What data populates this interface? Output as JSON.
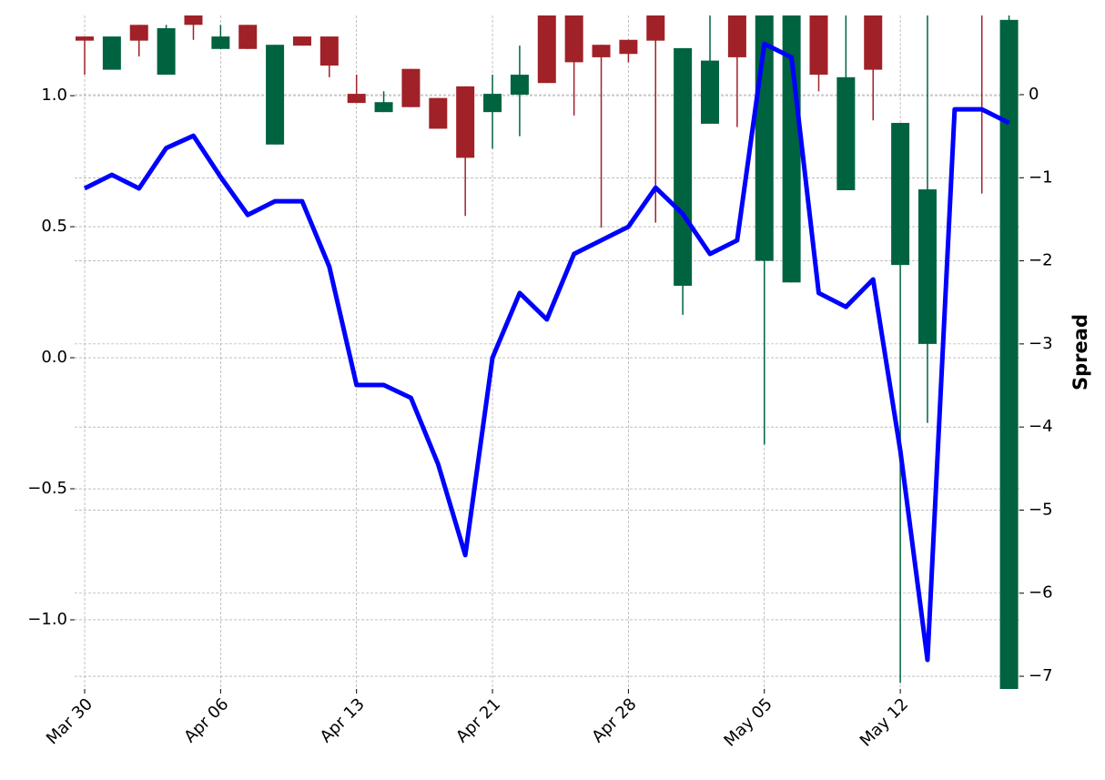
{
  "chart_data": {
    "type": "candlestick",
    "categories": [
      "Mar 30",
      null,
      null,
      null,
      null,
      "Apr 06",
      null,
      null,
      null,
      null,
      "Apr 13",
      null,
      null,
      null,
      null,
      "Apr 21",
      null,
      null,
      null,
      null,
      "Apr 28",
      null,
      null,
      null,
      null,
      "May 05",
      null,
      null,
      null,
      null,
      "May 12",
      null,
      null,
      null,
      null
    ],
    "y2label": "Spread",
    "ylim": [
      -1.264,
      1.306
    ],
    "yticks": [
      {
        "value": -1,
        "label": "−1.0"
      },
      {
        "value": -0.5,
        "label": "−0.5"
      },
      {
        "value": 0,
        "label": "0.0"
      },
      {
        "value": 0.5,
        "label": "0.5"
      },
      {
        "value": 1,
        "label": "1.0"
      }
    ],
    "y2lim": [
      -7.153,
      0.953
    ],
    "y2ticks": [
      {
        "value": -7,
        "label": "−7"
      },
      {
        "value": -6,
        "label": "−6"
      },
      {
        "value": -5,
        "label": "−5"
      },
      {
        "value": -4,
        "label": "−4"
      },
      {
        "value": -3,
        "label": "−3"
      },
      {
        "value": -2,
        "label": "−2"
      },
      {
        "value": -1,
        "label": "−1"
      },
      0
    ],
    "grid": true,
    "series": [
      {
        "type": "candlestick",
        "axis": "y2",
        "up_color": "#006340",
        "down_color": "#a02128",
        "open": [
          0.7,
          0.3,
          0.84,
          0.24,
          1.0,
          0.55,
          0.84,
          -0.6,
          0.7,
          0.7,
          0.01,
          -0.21,
          0.31,
          -0.04,
          0.1,
          -0.21,
          0.0,
          1.2,
          1.1,
          0.6,
          0.66,
          1.1,
          -2.3,
          -0.35,
          1.1,
          -2.0,
          -2.26,
          1.1,
          -1.15,
          1.0,
          -2.05,
          -3.0,
          1.3,
          1.3,
          -7.3
        ],
        "high": [
          0.7,
          0.7,
          0.84,
          0.84,
          1.1,
          0.84,
          0.84,
          0.6,
          0.7,
          0.7,
          0.24,
          0.04,
          0.31,
          -0.04,
          0.1,
          0.24,
          0.59,
          1.2,
          1.3,
          0.6,
          0.66,
          1.2,
          0.56,
          1.1,
          1.2,
          1.2,
          1.1,
          1.2,
          1.1,
          1.1,
          -0.34,
          1.0,
          1.4,
          1.4,
          1.0
        ],
        "low": [
          0.24,
          0.3,
          0.46,
          0.24,
          0.66,
          0.55,
          0.55,
          -0.6,
          0.59,
          0.21,
          -0.1,
          -0.21,
          -0.15,
          -0.41,
          -1.46,
          -0.65,
          -0.5,
          0.14,
          -0.25,
          -1.6,
          0.39,
          -1.54,
          -2.65,
          -0.35,
          -0.39,
          -4.21,
          -2.26,
          0.04,
          -1.15,
          -0.31,
          -7.08,
          -3.95,
          0.96,
          -1.19,
          -7.3
        ],
        "close": [
          0.65,
          0.7,
          0.65,
          0.8,
          0.84,
          0.7,
          0.55,
          0.6,
          0.59,
          0.35,
          -0.1,
          -0.09,
          -0.15,
          -0.41,
          -0.76,
          0.01,
          0.24,
          0.14,
          0.39,
          0.45,
          0.49,
          0.65,
          0.56,
          0.41,
          0.45,
          1.1,
          1.0,
          0.24,
          0.21,
          0.3,
          -0.34,
          -1.14,
          0.96,
          0.96,
          0.9
        ]
      },
      {
        "type": "line",
        "color": "#0000ff",
        "values": [
          0.646,
          0.698,
          0.646,
          0.8,
          0.847,
          0.69,
          0.545,
          0.597,
          0.597,
          0.347,
          -0.104,
          -0.104,
          -0.153,
          -0.406,
          -0.753,
          0.0,
          0.247,
          0.146,
          0.396,
          0.448,
          0.5,
          0.649,
          0.549,
          0.396,
          0.448,
          1.198,
          1.146,
          0.247,
          0.194,
          0.299,
          -0.354,
          -1.153,
          0.948,
          0.948,
          0.896
        ]
      }
    ]
  }
}
